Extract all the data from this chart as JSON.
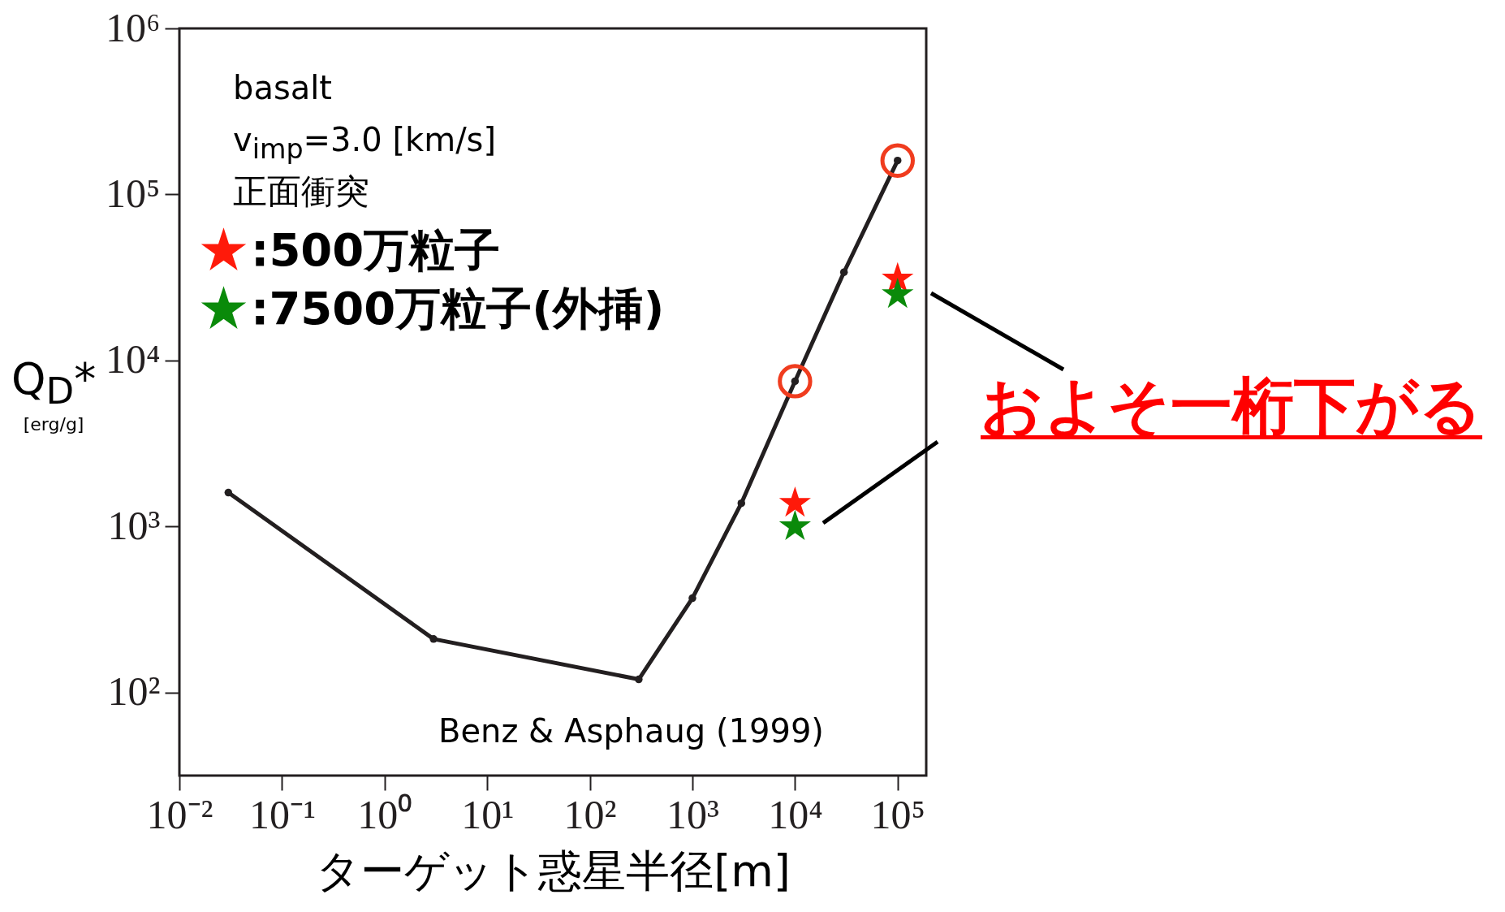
{
  "chart_data": {
    "type": "line",
    "xlabel": "ターゲット惑星半径[m]",
    "ylabel": "Q$_{D}$*\n[erg/g]",
    "log": "xy",
    "xlim": [
      0.01,
      190000
    ],
    "xticks": [
      {
        "value": 0.01,
        "label": "10⁻²"
      },
      {
        "value": 0.1,
        "label": "10⁻¹"
      },
      {
        "value": 1,
        "label": "10⁰"
      },
      {
        "value": 10,
        "label": "10¹"
      },
      {
        "value": 100,
        "label": "10²"
      },
      {
        "value": 1000,
        "label": "10³"
      },
      {
        "value": 10000,
        "label": "10⁴"
      },
      {
        "value": 100000,
        "label": "10⁵"
      }
    ],
    "ylim": [
      31.6,
      1000000
    ],
    "yticks": [
      {
        "value": 100,
        "label": "10²"
      },
      {
        "value": 1000,
        "label": "10³"
      },
      {
        "value": 10000,
        "label": "10⁴"
      },
      {
        "value": 100000,
        "label": "10⁵"
      },
      {
        "value": 1000000,
        "label": "10⁶"
      }
    ],
    "grid": false,
    "legend": "top left",
    "series": [
      {
        "type": "line",
        "color": "#231f20",
        "marker": "circle",
        "x": [
          0.03,
          3,
          300,
          1000,
          3000,
          10000,
          30000,
          100000
        ],
        "values": [
          1600,
          210,
          120,
          370,
          1380,
          7500,
          34000,
          160000
        ]
      },
      {
        "type": "scatter",
        "marker": "circle",
        "color": "#f03c1e",
        "x": [
          10000,
          100000
        ],
        "values": [
          7500,
          160000
        ]
      },
      {
        "type": "scatter",
        "marker": "star",
        "name": ":500万粒子",
        "color": "#ff1a0a",
        "x": [
          10000,
          100000
        ],
        "values": [
          1380,
          31000
        ]
      },
      {
        "type": "scatter",
        "marker": "star",
        "name": ":7500万粒子(外挿)",
        "color": "#0a8a0a",
        "x": [
          10000,
          100000
        ],
        "values": [
          1000,
          25000
        ]
      }
    ],
    "annotations": [
      "basalt",
      "v$_{imp}$=3.0 [km/s]",
      "正面衝突",
      "Benz & Asphaug (1999)",
      "およそ一桁下がる"
    ]
  }
}
